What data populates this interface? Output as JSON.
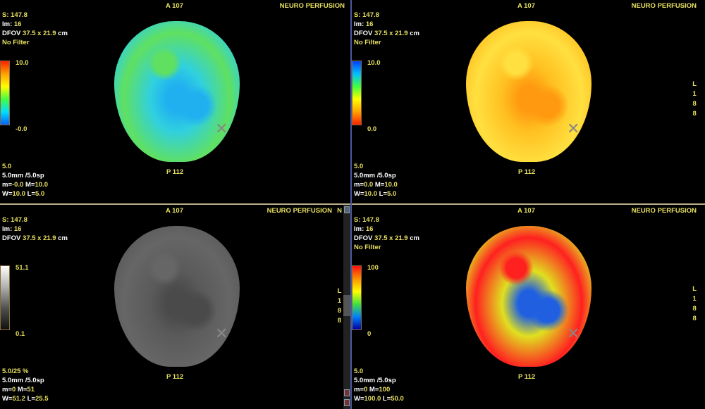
{
  "panes": [
    {
      "anterior": "A 107",
      "protocol": "NEURO PERFUSION",
      "posterior": "P 112",
      "info": {
        "s_label": "S:",
        "s": "147.8",
        "im_label": "Im:",
        "im": "16",
        "dfov_label": "DFOV",
        "dfov": "37.5 x 21.9",
        "dfov_unit": "cm",
        "filter": "No Filter"
      },
      "bottom": {
        "thickness": "5.0",
        "spacing": "5.0mm /5.0sp",
        "m_label": "m=",
        "m": "-0.0",
        "M_label": " M=",
        "M": "10.0",
        "w_label": "W=",
        "w": "10.0",
        "l_label": " L=",
        "l": "5.0"
      },
      "colorbar": {
        "max": "10.0",
        "min": "-0.0",
        "colors": [
          "#ff2000",
          "#ffa000",
          "#ffff00",
          "#40ff40",
          "#00e0ff",
          "#0060ff"
        ]
      },
      "brain_colors": [
        "#30d0e0",
        "#20b0f0",
        "#60e060"
      ]
    },
    {
      "anterior": "A 107",
      "protocol": "NEURO PERFUSION",
      "posterior": "P 112",
      "info": {
        "s_label": "S:",
        "s": "147.8",
        "im_label": "Im:",
        "im": "16",
        "dfov_label": "DFOV",
        "dfov": "37.5 x 21.9",
        "dfov_unit": "cm",
        "filter": "No Filter"
      },
      "bottom": {
        "thickness": "5.0",
        "spacing": "5.0mm /5.0sp",
        "m_label": "m=",
        "m": "0.0",
        "M_label": " M=",
        "M": "10.0",
        "w_label": "W=",
        "w": "10.0",
        "l_label": " L=",
        "l": "5.0"
      },
      "colorbar": {
        "max": "10.0",
        "min": "0.0",
        "colors": [
          "#0040ff",
          "#00c0ff",
          "#40ff40",
          "#ffff00",
          "#ffa000",
          "#ff2000"
        ]
      },
      "side": [
        "L",
        "1",
        "8",
        "8"
      ],
      "brain_colors": [
        "#ffc020",
        "#ff9a10",
        "#ffe040"
      ]
    },
    {
      "anterior": "A 107",
      "protocol": "NEURO PERFUSION",
      "posterior": "P 112",
      "info": {
        "s_label": "S:",
        "s": "147.8",
        "im_label": "Im:",
        "im": "16",
        "dfov_label": "DFOV",
        "dfov": "37.5 x 21.9",
        "dfov_unit": "cm",
        "filter": ""
      },
      "bottom": {
        "thickness": "5.0/25 %",
        "spacing": "5.0mm /5.0sp",
        "m_label": "m=",
        "m": "0",
        "M_label": " M=",
        "M": "51",
        "w_label": "W=",
        "w": "51.2",
        "l_label": " L=",
        "l": "25.5"
      },
      "colorbar": {
        "max": "51.1",
        "min": "0.1",
        "colors": [
          "#ffffff",
          "#b0b0b0",
          "#505050",
          "#101010"
        ]
      },
      "brain_colors": [
        "#5a5a5a",
        "#4a4a4a",
        "#666666"
      ]
    },
    {
      "anterior": "A 107",
      "protocol": "NEURO PERFUSION",
      "posterior": "P 112",
      "info": {
        "s_label": "S:",
        "s": "147.8",
        "im_label": "Im:",
        "im": "16",
        "dfov_label": "DFOV",
        "dfov": "37.5 x 21.9",
        "dfov_unit": "cm",
        "filter": "No Filter"
      },
      "bottom": {
        "thickness": "5.0",
        "spacing": "5.0mm /5.0sp",
        "m_label": "m=",
        "m": "0",
        "M_label": " M=",
        "M": "100",
        "w_label": "W=",
        "w": "100.0",
        "l_label": " L=",
        "l": "50.0"
      },
      "colorbar": {
        "max": "100",
        "min": "0",
        "colors": [
          "#ff1010",
          "#ff9000",
          "#ffff00",
          "#40e040",
          "#0080ff",
          "#0000a0"
        ]
      },
      "side": [
        "L",
        "1",
        "8",
        "8"
      ],
      "brain_colors": [
        "#e0e020",
        "#2060e0",
        "#ff2020"
      ]
    }
  ],
  "scrollbar_side": [
    "N",
    "L",
    "1",
    "8",
    "8"
  ]
}
